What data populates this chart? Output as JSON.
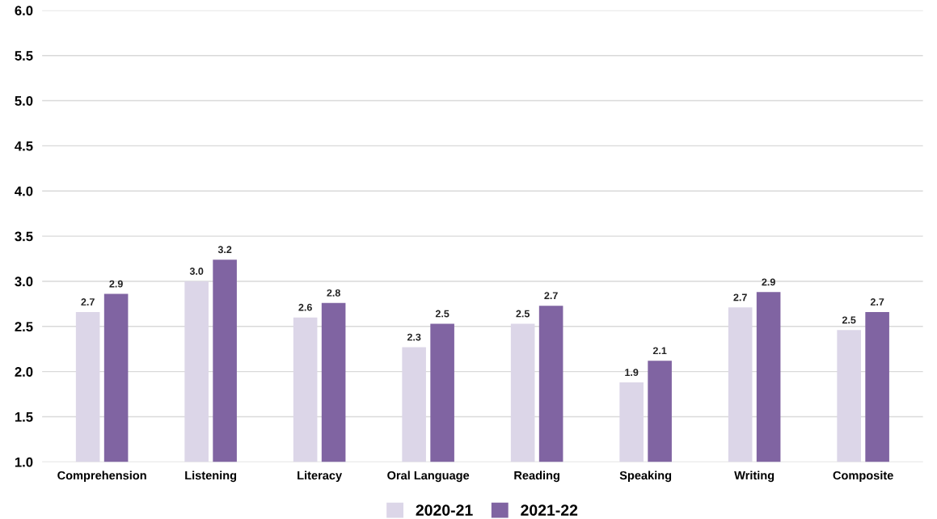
{
  "chart_data": {
    "type": "bar",
    "categories": [
      "Comprehension",
      "Listening",
      "Literacy",
      "Oral Language",
      "Reading",
      "Speaking",
      "Writing",
      "Composite"
    ],
    "series": [
      {
        "name": "2020-21",
        "color": "#dcd6e8",
        "values": [
          2.66,
          3.0,
          2.6,
          2.27,
          2.53,
          1.88,
          2.71,
          2.46
        ],
        "value_labels": [
          "2.7",
          "3.0",
          "2.6",
          "2.3",
          "2.5",
          "1.9",
          "2.7",
          "2.5"
        ]
      },
      {
        "name": "2021-22",
        "color": "#8064a2",
        "values": [
          2.86,
          3.24,
          2.76,
          2.53,
          2.73,
          2.12,
          2.88,
          2.66
        ],
        "value_labels": [
          "2.9",
          "3.2",
          "2.8",
          "2.5",
          "2.7",
          "2.1",
          "2.9",
          "2.7"
        ]
      }
    ],
    "ylim": [
      1.0,
      6.0
    ],
    "yticks": [
      {
        "value": 1.0,
        "label": "1.0"
      },
      {
        "value": 1.5,
        "label": "1.5"
      },
      {
        "value": 2.0,
        "label": "2.0"
      },
      {
        "value": 2.5,
        "label": "2.5"
      },
      {
        "value": 3.0,
        "label": "3.0"
      },
      {
        "value": 3.5,
        "label": "3.5"
      },
      {
        "value": 4.0,
        "label": "4.0"
      },
      {
        "value": 4.5,
        "label": "4.5"
      },
      {
        "value": 5.0,
        "label": "5.0"
      },
      {
        "value": 5.5,
        "label": "5.5"
      },
      {
        "value": 6.0,
        "label": "6.0"
      }
    ],
    "grid": "y",
    "legend": "bottom"
  }
}
